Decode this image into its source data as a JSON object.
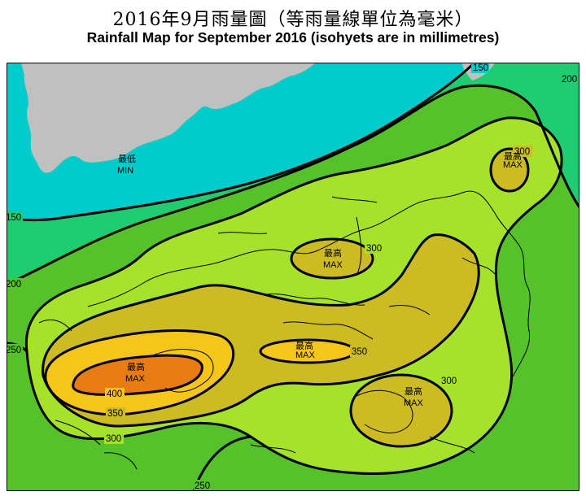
{
  "title": {
    "zh": "2016年9月雨量圖（等雨量線單位為毫米）",
    "en": "Rainfall Map for September 2016 (isohyets are in millimetres)"
  },
  "isohyet_labels": {
    "v150_top": "150",
    "v200_right": "200",
    "v150_left": "150",
    "v200_left": "200",
    "v250_left": "250",
    "v250_bottom": "250",
    "v300_bottom": "300",
    "v350_lower": "350",
    "v400": "400",
    "v350_center": "350",
    "v300_central": "300",
    "v300_east": "300",
    "v300_ne": "300"
  },
  "markers": {
    "min_zh": "最低",
    "min_en": "MIN",
    "max_ne_zh": "最高",
    "max_ne_en": "MAX",
    "max_central_zh": "最高",
    "max_central_en": "MAX",
    "max_center_zh": "最高",
    "max_center_en": "MAX",
    "max_west_zh": "最高",
    "max_west_en": "MAX",
    "max_east_zh": "最高",
    "max_east_en": "MAX"
  },
  "colors": {
    "band_lt150": "#00cccc",
    "band_150_200": "#20cc70",
    "band_200_250": "#55c22a",
    "band_250_300": "#a6e22a",
    "band_300_350": "#ccbb22",
    "band_350_400": "#f5c51a",
    "band_gt400": "#e87b12",
    "land_outside": "#c0c0c0",
    "contour": "#000000"
  }
}
